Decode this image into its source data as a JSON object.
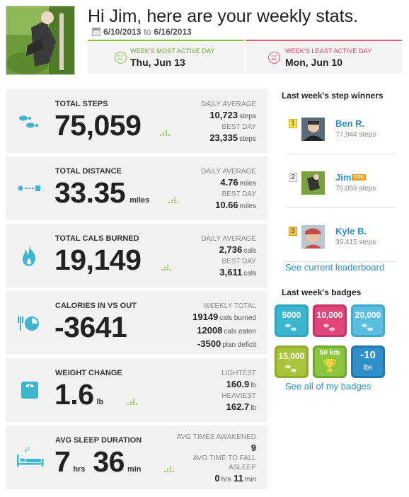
{
  "header": {
    "greeting": "Hi Jim, here are your weekly stats.",
    "date_start": "6/10/2013",
    "date_sep": "to",
    "date_end": "6/16/2013",
    "most_active_label": "WEEK'S MOST ACTIVE DAY",
    "most_active_value": "Thu, Jun 13",
    "least_active_label": "WEEK'S LEAST ACTIVE DAY",
    "least_active_value": "Mon, Jun 10"
  },
  "colors": {
    "accent_green": "#8cc63f",
    "accent_red": "#ec5a73",
    "icon_teal": "#3cb6cf",
    "link_blue": "#2a8fd0"
  },
  "cards": {
    "steps": {
      "title": "TOTAL STEPS",
      "value": "75,059",
      "icon": "footsteps-icon",
      "r1_label": "DAILY AVERAGE",
      "r1_val": "10,723",
      "r1_unit": "steps",
      "r2_label": "BEST DAY",
      "r2_val": "23,335",
      "r2_unit": "steps"
    },
    "distance": {
      "title": "TOTAL DISTANCE",
      "value": "33.35",
      "unit": "miles",
      "icon": "distance-icon",
      "r1_label": "DAILY AVERAGE",
      "r1_val": "4.76",
      "r1_unit": "miles",
      "r2_label": "BEST DAY",
      "r2_val": "10.66",
      "r2_unit": "miles"
    },
    "cals": {
      "title": "TOTAL CALS BURNED",
      "value": "19,149",
      "icon": "flame-icon",
      "r1_label": "DAILY AVERAGE",
      "r1_val": "2,736",
      "r1_unit": "cals",
      "r2_label": "BEST DAY",
      "r2_val": "3,611",
      "r2_unit": "cals"
    },
    "inout": {
      "title": "CALORIES IN VS OUT",
      "value": "-3641",
      "icon": "plate-icon",
      "r_label": "WEEKLY TOTAL",
      "line1_val": "19149",
      "line1_unit": "cals burned",
      "line2_val": "12008",
      "line2_unit": "cals eaten",
      "line3_val": "-3500",
      "line3_unit": "plan deficit"
    },
    "weight": {
      "title": "WEIGHT CHANGE",
      "value": "1.6",
      "unit": "lb",
      "icon": "scale-icon",
      "r1_label": "LIGHTEST",
      "r1_val": "160.9",
      "r1_unit": "lb",
      "r2_label": "HEAVIEST",
      "r2_val": "162.7",
      "r2_unit": "lb"
    },
    "sleep": {
      "title": "AVG SLEEP DURATION",
      "hours": "7",
      "hours_unit": "hrs",
      "mins": "36",
      "mins_unit": "min",
      "icon": "bed-icon",
      "r1_label": "AVG TIMES AWAKENED",
      "r1_val": "9",
      "r2_label_a": "AVG TIME TO FALL",
      "r2_label_b": "ASLEEP",
      "r2_hours": "0",
      "r2_hours_unit": "hrs",
      "r2_mins": "11",
      "r2_mins_unit": "min"
    }
  },
  "sidebar": {
    "winners_title": "Last week's step winners",
    "winners": [
      {
        "rank": "1",
        "name": "Ben R.",
        "steps": "77,944 steps"
      },
      {
        "rank": "2",
        "name": "Jim",
        "you": "YOU",
        "steps": "75,059 steps"
      },
      {
        "rank": "3",
        "name": "Kyle B.",
        "steps": "39,415 steps"
      }
    ],
    "leaderboard_link": "See current leaderboard",
    "badges_title": "Last week's badges",
    "badges": [
      {
        "label": "5000",
        "color": "#3cb6cf"
      },
      {
        "label": "10,000",
        "color": "#e0467a"
      },
      {
        "label": "20,000",
        "color": "#5bbde0"
      },
      {
        "label": "15,000",
        "color": "#a9c43a"
      },
      {
        "label": "50 km",
        "color": "#8cc63f"
      },
      {
        "label": "-10",
        "sub": "lbs",
        "color": "#2f8fc8"
      }
    ],
    "badges_link": "See all of my badges"
  }
}
